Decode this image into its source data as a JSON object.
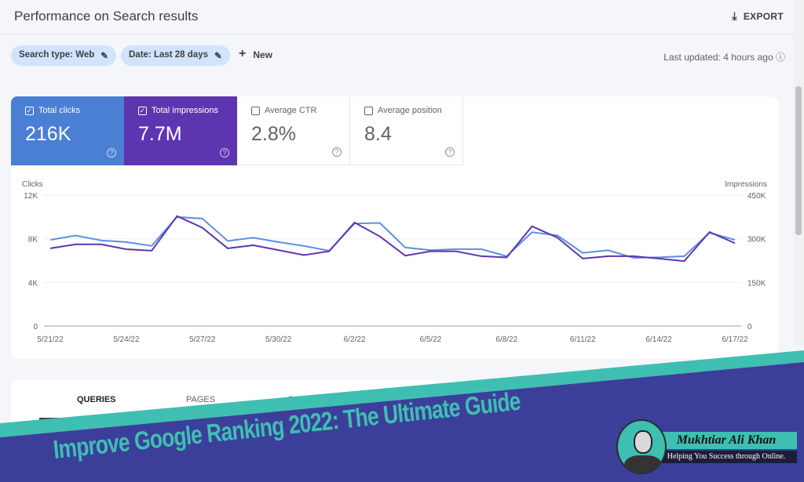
{
  "header": {
    "title": "Performance on Search results",
    "export_label": "EXPORT"
  },
  "filters": {
    "search_type": "Search type: Web",
    "date": "Date: Last 28 days",
    "new_label": "New",
    "last_updated": "Last updated: 4 hours ago"
  },
  "metrics": [
    {
      "label": "Total clicks",
      "value": "216K",
      "checked": true,
      "color": "#4a7fd4"
    },
    {
      "label": "Total impressions",
      "value": "7.7M",
      "checked": true,
      "color": "#5e35b1"
    },
    {
      "label": "Average CTR",
      "value": "2.8%",
      "checked": false
    },
    {
      "label": "Average position",
      "value": "8.4",
      "checked": false
    }
  ],
  "chart_data": {
    "type": "line",
    "left_axis_label": "Clicks",
    "right_axis_label": "Impressions",
    "left_ticks": [
      "12K",
      "8K",
      "4K",
      "0"
    ],
    "right_ticks": [
      "450K",
      "300K",
      "150K",
      "0"
    ],
    "ylim_left": [
      0,
      12000
    ],
    "ylim_right": [
      0,
      450000
    ],
    "x_tick_labels": [
      "5/21/22",
      "5/24/22",
      "5/27/22",
      "5/30/22",
      "6/2/22",
      "6/5/22",
      "6/8/22",
      "6/11/22",
      "6/14/22",
      "6/17/22"
    ],
    "x": [
      "5/21/22",
      "5/22/22",
      "5/23/22",
      "5/24/22",
      "5/25/22",
      "5/26/22",
      "5/27/22",
      "5/28/22",
      "5/29/22",
      "5/30/22",
      "5/31/22",
      "6/1/22",
      "6/2/22",
      "6/3/22",
      "6/4/22",
      "6/5/22",
      "6/6/22",
      "6/7/22",
      "6/8/22",
      "6/9/22",
      "6/10/22",
      "6/11/22",
      "6/12/22",
      "6/13/22",
      "6/14/22",
      "6/15/22",
      "6/16/22",
      "6/17/22"
    ],
    "grid": true,
    "series": [
      {
        "name": "Clicks",
        "axis": "left",
        "color": "#5b8fe0",
        "values": [
          7900,
          8300,
          7850,
          7700,
          7350,
          10000,
          9850,
          7800,
          8100,
          7700,
          7350,
          6900,
          9400,
          9450,
          7200,
          6950,
          7050,
          7050,
          6400,
          8600,
          8300,
          6700,
          6950,
          6250,
          6300,
          6400,
          8550,
          7900
        ]
      },
      {
        "name": "Impressions",
        "axis": "right",
        "color": "#5e35b1",
        "values": [
          267000,
          281000,
          281000,
          264000,
          259000,
          378000,
          338000,
          267000,
          278000,
          261000,
          244000,
          257000,
          356000,
          308000,
          242000,
          257000,
          257000,
          240000,
          236000,
          343000,
          304000,
          232000,
          240000,
          240000,
          232000,
          223000,
          323000,
          285000
        ]
      }
    ]
  },
  "tabs": [
    "QUERIES",
    "PAGES",
    "COUNTRIES"
  ],
  "banner": {
    "title": "Improve Google Ranking 2022: The Ultimate Guide",
    "name": "Mukhtiar Ali Khan",
    "tagline": "Helping You Success through Online.",
    "teal": "#3ebfb2",
    "purple": "#3c3f9a"
  }
}
